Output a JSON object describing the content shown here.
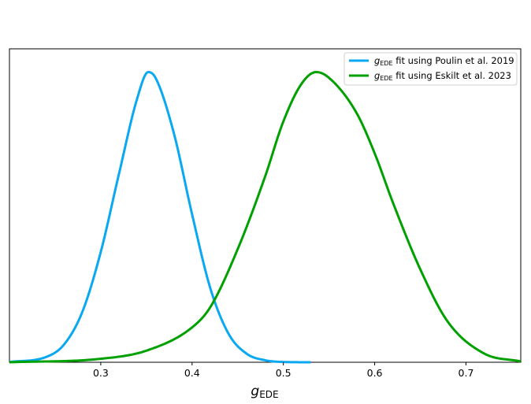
{
  "chart_data": {
    "type": "line",
    "xlabel": {
      "main": "g",
      "sub": "EDE"
    },
    "xlim": [
      0.2,
      0.76
    ],
    "ylim": [
      0,
      1.08
    ],
    "yticks": "none",
    "xticks": [
      0.3,
      0.4,
      0.5,
      0.6,
      0.7
    ],
    "xtick_labels": [
      "0.3",
      "0.4",
      "0.5",
      "0.6",
      "0.7"
    ],
    "grid": false,
    "legend_position": "top-right",
    "series": [
      {
        "name": "g_EDE fit using Poulin et al. 2019",
        "legend": {
          "main": "g",
          "sub": "EDE",
          "text": " fit using Poulin et al. 2019"
        },
        "color": "#0aa8f0",
        "shape": "gaussian",
        "peak_x": 0.352,
        "peak_y": 1.0,
        "x": [
          0.2,
          0.24,
          0.26,
          0.28,
          0.3,
          0.32,
          0.34,
          0.352,
          0.36,
          0.38,
          0.4,
          0.42,
          0.44,
          0.46,
          0.48,
          0.5,
          0.53
        ],
        "y": [
          0.001,
          0.018,
          0.062,
          0.175,
          0.38,
          0.65,
          0.91,
          1.0,
          0.98,
          0.79,
          0.51,
          0.255,
          0.098,
          0.029,
          0.007,
          0.001,
          0.0
        ]
      },
      {
        "name": "g_EDE fit using Eskilt et al. 2023",
        "legend": {
          "main": "g",
          "sub": "EDE",
          "text": " fit using Eskilt et al. 2023"
        },
        "color": "#00a000",
        "shape": "gaussian",
        "peak_x": 0.536,
        "peak_y": 1.0,
        "x": [
          0.2,
          0.3,
          0.35,
          0.4,
          0.42,
          0.45,
          0.48,
          0.5,
          0.52,
          0.536,
          0.55,
          0.58,
          0.6,
          0.62,
          0.65,
          0.68,
          0.72,
          0.76
        ],
        "y": [
          0.0,
          0.012,
          0.04,
          0.12,
          0.19,
          0.39,
          0.64,
          0.83,
          0.96,
          1.0,
          0.98,
          0.86,
          0.72,
          0.55,
          0.32,
          0.14,
          0.03,
          0.003
        ]
      }
    ]
  }
}
